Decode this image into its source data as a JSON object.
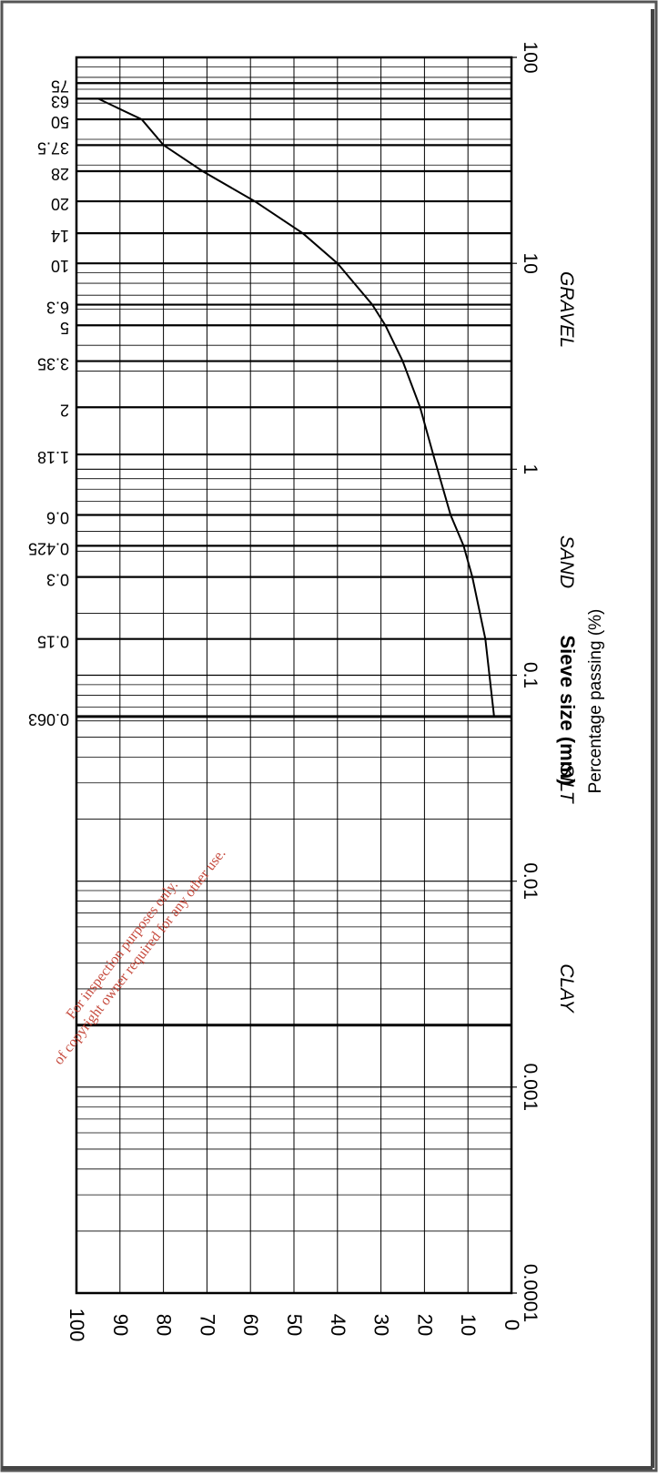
{
  "chart_data": {
    "type": "line",
    "title": "",
    "xlabel": "Sieve size (mm)",
    "ylabel": "Percentage passing (%)",
    "x_scale": "log",
    "xlim": [
      0.0001,
      100
    ],
    "ylim": [
      0,
      100
    ],
    "grid": true,
    "x_tick_labels": [
      "0.0001",
      "0.001",
      "0.01",
      "0.1",
      "1",
      "10",
      "100"
    ],
    "y_tick_labels": [
      "0",
      "10",
      "20",
      "30",
      "40",
      "50",
      "60",
      "70",
      "80",
      "90",
      "100"
    ],
    "sieve_sizes": [
      "0.063",
      "0.15",
      "0.3",
      "0.425",
      "0.6",
      "1.18",
      "2",
      "3.35",
      "5",
      "6.3",
      "10",
      "14",
      "20",
      "28",
      "37.5",
      "50",
      "63",
      "75"
    ],
    "soil_classes": [
      "CLAY",
      "SILT",
      "SAND",
      "GRAVEL"
    ],
    "series": [
      {
        "x": [
          0.063,
          0.15,
          0.3,
          0.425,
          0.6,
          1.18,
          2,
          3.35,
          5,
          6.3,
          10,
          14,
          20,
          28,
          37.5,
          50,
          63
        ],
        "y": [
          4,
          6,
          9,
          11,
          14,
          18,
          21,
          25,
          29,
          32,
          40,
          48,
          59,
          71,
          80,
          85,
          95
        ]
      }
    ]
  },
  "watermark": {
    "line1": "For inspection purposes only.",
    "line2": "of copyright owner required for any other use."
  },
  "colors": {
    "line": "#000000",
    "grid": "#000000",
    "watermark": "#c0392b",
    "frame": "#555555"
  }
}
